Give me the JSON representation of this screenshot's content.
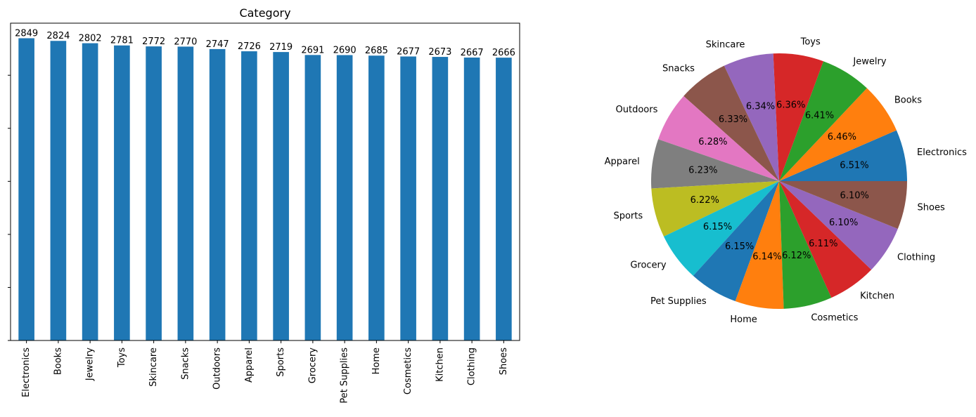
{
  "chart_data": [
    {
      "type": "bar",
      "title": "Category",
      "xlabel": "",
      "ylabel": "",
      "ylim": [
        0,
        2991
      ],
      "grid": false,
      "legend": "none",
      "color": "#1f77b4",
      "categories": [
        "Electronics",
        "Books",
        "Jewelry",
        "Toys",
        "Skincare",
        "Snacks",
        "Outdoors",
        "Apparel",
        "Sports",
        "Grocery",
        "Pet Supplies",
        "Home",
        "Cosmetics",
        "Kitchen",
        "Clothing",
        "Shoes"
      ],
      "values": [
        2849,
        2824,
        2802,
        2781,
        2772,
        2770,
        2747,
        2726,
        2719,
        2691,
        2690,
        2685,
        2677,
        2673,
        2667,
        2666
      ]
    },
    {
      "type": "pie",
      "title": "",
      "legend": "none",
      "start_angle": 0,
      "direction": "counterclockwise",
      "labels": [
        "Electronics",
        "Books",
        "Jewelry",
        "Toys",
        "Skincare",
        "Snacks",
        "Outdoors",
        "Apparel",
        "Sports",
        "Grocery",
        "Pet Supplies",
        "Home",
        "Cosmetics",
        "Kitchen",
        "Clothing",
        "Shoes"
      ],
      "values": [
        2849,
        2824,
        2802,
        2781,
        2772,
        2770,
        2747,
        2726,
        2719,
        2691,
        2690,
        2685,
        2677,
        2673,
        2667,
        2666
      ],
      "percent_labels": [
        "6.51%",
        "6.46%",
        "6.41%",
        "6.36%",
        "6.34%",
        "6.33%",
        "6.28%",
        "6.23%",
        "6.22%",
        "6.15%",
        "6.15%",
        "6.14%",
        "6.12%",
        "6.11%",
        "6.10%",
        "6.10%"
      ],
      "colors": [
        "#1f77b4",
        "#ff7f0e",
        "#2ca02c",
        "#d62728",
        "#9467bd",
        "#8c564b",
        "#e377c2",
        "#7f7f7f",
        "#bcbd22",
        "#17becf",
        "#1f77b4",
        "#ff7f0e",
        "#2ca02c",
        "#d62728",
        "#9467bd",
        "#8c564b"
      ]
    }
  ]
}
